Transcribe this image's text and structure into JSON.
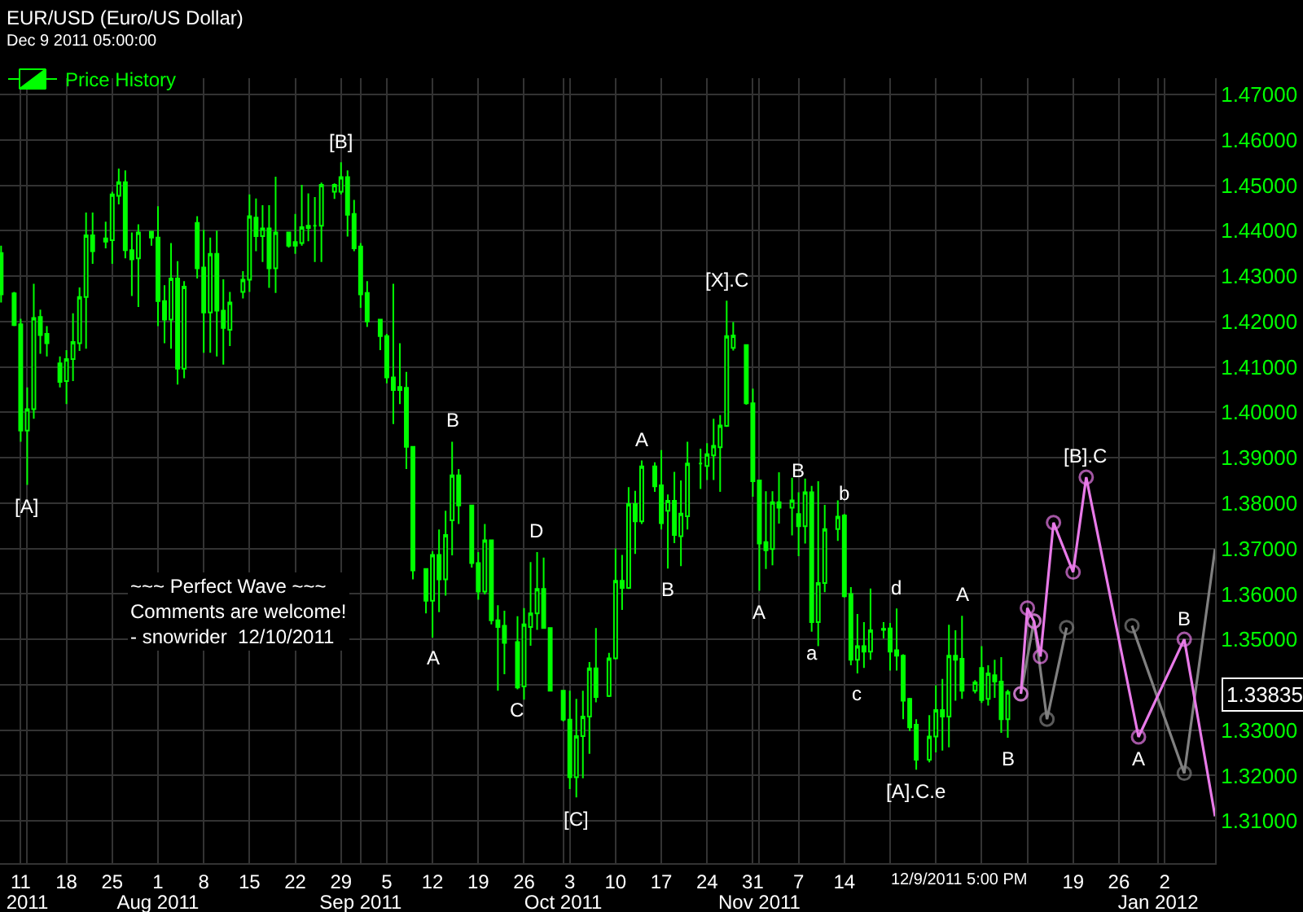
{
  "chart_data": {
    "type": "candlestick",
    "title": "EUR/USD (Euro/US Dollar)",
    "subtitle": "Dec 9 2011 05:00:00",
    "xlim": [
      "2011-07-07T20:00",
      "2012-01-09T17:00"
    ],
    "ylim": [
      1.3007,
      1.4736
    ],
    "xticks": [
      {
        "value": "2011-07-11",
        "label": "11"
      },
      {
        "value": "2011-07-18",
        "label": "18"
      },
      {
        "value": "2011-07-25",
        "label": "25"
      },
      {
        "value": "2011-08-01",
        "label": "1"
      },
      {
        "value": "2011-08-08",
        "label": "8"
      },
      {
        "value": "2011-08-15",
        "label": "15"
      },
      {
        "value": "2011-08-22",
        "label": "22"
      },
      {
        "value": "2011-08-29",
        "label": "29"
      },
      {
        "value": "2011-09-05",
        "label": "5"
      },
      {
        "value": "2011-09-12",
        "label": "12"
      },
      {
        "value": "2011-09-19",
        "label": "19"
      },
      {
        "value": "2011-09-26",
        "label": "26"
      },
      {
        "value": "2011-10-03",
        "label": "3"
      },
      {
        "value": "2011-10-10",
        "label": "10"
      },
      {
        "value": "2011-10-17",
        "label": "17"
      },
      {
        "value": "2011-10-24",
        "label": "24"
      },
      {
        "value": "2011-10-31",
        "label": "31"
      },
      {
        "value": "2011-11-07",
        "label": "7"
      },
      {
        "value": "2011-11-14",
        "label": "14"
      },
      {
        "value": "2011-11-21",
        "label": null
      },
      {
        "value": "2011-11-28",
        "label": null
      },
      {
        "value": "2011-12-05",
        "label": null
      },
      {
        "value": "2011-12-12",
        "label": null
      },
      {
        "value": "2011-12-19",
        "label": "19"
      },
      {
        "value": "2011-12-26",
        "label": "26"
      },
      {
        "value": "2012-01-02",
        "label": "2"
      }
    ],
    "x2lim": [
      "2011-07-07T20:00",
      "2012-01-09T17:00"
    ],
    "x2ticks": [
      {
        "value": "2011-07-12",
        "label": "2011"
      },
      {
        "value": "2011-08-01",
        "label": "Aug 2011"
      },
      {
        "value": "2011-09-01",
        "label": "Sep 2011"
      },
      {
        "value": "2011-10-02",
        "label": "Oct 2011"
      },
      {
        "value": "2011-11-01",
        "label": "Nov 2011"
      },
      {
        "value": "2012-01-01",
        "label": "Jan 2012"
      }
    ],
    "yticks": [
      {
        "value": 1.31,
        "label": "1.31000"
      },
      {
        "value": 1.32,
        "label": "1.32000"
      },
      {
        "value": 1.33,
        "label": "1.33000"
      },
      {
        "value": 1.34,
        "label": null
      },
      {
        "value": 1.35,
        "label": "1.35000"
      },
      {
        "value": 1.36,
        "label": "1.36000"
      },
      {
        "value": 1.37,
        "label": "1.37000"
      },
      {
        "value": 1.38,
        "label": "1.38000"
      },
      {
        "value": 1.39,
        "label": "1.39000"
      },
      {
        "value": 1.4,
        "label": "1.40000"
      },
      {
        "value": 1.41,
        "label": "1.41000"
      },
      {
        "value": 1.42,
        "label": "1.42000"
      },
      {
        "value": 1.43,
        "label": "1.43000"
      },
      {
        "value": 1.44,
        "label": "1.44000"
      },
      {
        "value": 1.45,
        "label": "1.45000"
      },
      {
        "value": 1.46,
        "label": "1.46000"
      },
      {
        "value": 1.47,
        "label": "1.47000"
      }
    ],
    "grid": true,
    "legend": "top left",
    "series": [
      {
        "name": "Price History",
        "color": "#00ff00",
        "x": [
          "2011-07-08",
          "2011-07-10",
          "2011-07-11",
          "2011-07-12",
          "2011-07-13",
          "2011-07-14",
          "2011-07-15",
          "2011-07-17",
          "2011-07-18",
          "2011-07-19",
          "2011-07-20",
          "2011-07-21",
          "2011-07-22",
          "2011-07-24",
          "2011-07-25",
          "2011-07-26",
          "2011-07-27",
          "2011-07-28",
          "2011-07-29",
          "2011-07-31",
          "2011-08-01",
          "2011-08-02",
          "2011-08-03",
          "2011-08-04",
          "2011-08-05",
          "2011-08-07",
          "2011-08-08",
          "2011-08-09",
          "2011-08-10",
          "2011-08-11",
          "2011-08-12",
          "2011-08-14",
          "2011-08-15",
          "2011-08-16",
          "2011-08-17",
          "2011-08-18",
          "2011-08-19",
          "2011-08-21",
          "2011-08-22",
          "2011-08-23",
          "2011-08-24",
          "2011-08-25",
          "2011-08-26",
          "2011-08-28",
          "2011-08-29",
          "2011-08-30",
          "2011-08-31",
          "2011-09-01",
          "2011-09-02",
          "2011-09-04",
          "2011-09-05",
          "2011-09-06",
          "2011-09-07",
          "2011-09-08",
          "2011-09-09",
          "2011-09-11",
          "2011-09-12",
          "2011-09-13",
          "2011-09-14",
          "2011-09-15",
          "2011-09-16",
          "2011-09-18",
          "2011-09-19",
          "2011-09-20",
          "2011-09-21",
          "2011-09-22",
          "2011-09-23",
          "2011-09-25",
          "2011-09-26",
          "2011-09-27",
          "2011-09-28",
          "2011-09-29",
          "2011-09-30",
          "2011-10-02",
          "2011-10-03",
          "2011-10-04",
          "2011-10-05",
          "2011-10-06",
          "2011-10-07",
          "2011-10-09",
          "2011-10-10",
          "2011-10-11",
          "2011-10-12",
          "2011-10-13",
          "2011-10-14",
          "2011-10-16",
          "2011-10-17",
          "2011-10-18",
          "2011-10-19",
          "2011-10-20",
          "2011-10-21",
          "2011-10-23",
          "2011-10-24",
          "2011-10-25",
          "2011-10-26",
          "2011-10-27",
          "2011-10-28",
          "2011-10-30",
          "2011-10-31",
          "2011-11-01",
          "2011-11-02",
          "2011-11-03",
          "2011-11-04",
          "2011-11-06",
          "2011-11-07",
          "2011-11-08",
          "2011-11-09",
          "2011-11-10",
          "2011-11-11",
          "2011-11-13",
          "2011-11-14",
          "2011-11-15",
          "2011-11-16",
          "2011-11-17",
          "2011-11-18",
          "2011-11-20",
          "2011-11-21",
          "2011-11-22",
          "2011-11-23",
          "2011-11-24",
          "2011-11-25",
          "2011-11-27",
          "2011-11-28",
          "2011-11-29",
          "2011-11-30",
          "2011-12-01",
          "2011-12-02",
          "2011-12-04",
          "2011-12-05",
          "2011-12-06",
          "2011-12-07",
          "2011-12-08",
          "2011-12-09"
        ],
        "ohlc": [
          [
            1.4351,
            1.4367,
            1.4242,
            1.426
          ],
          [
            1.4262,
            1.4265,
            1.419,
            1.4192
          ],
          [
            1.4194,
            1.4206,
            1.3935,
            1.396
          ],
          [
            1.396,
            1.4055,
            1.384,
            1.4007
          ],
          [
            1.4007,
            1.4283,
            1.3986,
            1.4208
          ],
          [
            1.421,
            1.4226,
            1.4129,
            1.417
          ],
          [
            1.4173,
            1.419,
            1.4123,
            1.4152
          ],
          [
            1.4108,
            1.4123,
            1.4055,
            1.4067
          ],
          [
            1.4069,
            1.4137,
            1.4018,
            1.4117
          ],
          [
            1.4117,
            1.4218,
            1.4069,
            1.4155
          ],
          [
            1.4152,
            1.4275,
            1.4135,
            1.4254
          ],
          [
            1.4254,
            1.444,
            1.414,
            1.439
          ],
          [
            1.439,
            1.444,
            1.4327,
            1.4355
          ],
          [
            1.4383,
            1.442,
            1.4361,
            1.4376
          ],
          [
            1.4379,
            1.4486,
            1.4327,
            1.448
          ],
          [
            1.4477,
            1.4537,
            1.4458,
            1.4507
          ],
          [
            1.4507,
            1.4533,
            1.4339,
            1.4357
          ],
          [
            1.4357,
            1.4396,
            1.4256,
            1.4337
          ],
          [
            1.4339,
            1.4414,
            1.4232,
            1.4396
          ],
          [
            1.4398,
            1.4399,
            1.4367,
            1.4385
          ],
          [
            1.4385,
            1.4454,
            1.419,
            1.4245
          ],
          [
            1.4245,
            1.428,
            1.4152,
            1.4204
          ],
          [
            1.4204,
            1.4373,
            1.414,
            1.4295
          ],
          [
            1.4295,
            1.4333,
            1.4061,
            1.4096
          ],
          [
            1.4096,
            1.4289,
            1.4075,
            1.4277
          ],
          [
            1.4417,
            1.4432,
            1.4295,
            1.4317
          ],
          [
            1.4319,
            1.4402,
            1.4131,
            1.422
          ],
          [
            1.422,
            1.4385,
            1.4131,
            1.4349
          ],
          [
            1.4349,
            1.44,
            1.4123,
            1.4224
          ],
          [
            1.4224,
            1.4293,
            1.4105,
            1.4186
          ],
          [
            1.4182,
            1.4265,
            1.4146,
            1.4242
          ],
          [
            1.4265,
            1.4311,
            1.4251,
            1.4292
          ],
          [
            1.4292,
            1.448,
            1.4265,
            1.4432
          ],
          [
            1.4429,
            1.4471,
            1.4355,
            1.4388
          ],
          [
            1.4388,
            1.4456,
            1.4331,
            1.4405
          ],
          [
            1.4405,
            1.4456,
            1.4274,
            1.4317
          ],
          [
            1.4317,
            1.4519,
            1.4263,
            1.4396
          ],
          [
            1.4396,
            1.4396,
            1.4363,
            1.4367
          ],
          [
            1.4375,
            1.4437,
            1.4349,
            1.4367
          ],
          [
            1.4373,
            1.4501,
            1.4367,
            1.4408
          ],
          [
            1.4406,
            1.4482,
            1.4377,
            1.4411
          ],
          [
            1.4411,
            1.4474,
            1.4331,
            1.4411
          ],
          [
            1.4411,
            1.4506,
            1.4331,
            1.4501
          ],
          [
            1.4486,
            1.4504,
            1.447,
            1.4501
          ],
          [
            1.4486,
            1.4551,
            1.448,
            1.4518
          ],
          [
            1.4518,
            1.4533,
            1.4387,
            1.4435
          ],
          [
            1.4437,
            1.4468,
            1.4355,
            1.4361
          ],
          [
            1.4365,
            1.4373,
            1.423,
            1.426
          ],
          [
            1.4263,
            1.4289,
            1.4188,
            1.42
          ],
          [
            1.4204,
            1.4204,
            1.4137,
            1.4168
          ],
          [
            1.4168,
            1.4173,
            1.4064,
            1.4077
          ],
          [
            1.4077,
            1.4283,
            1.3974,
            1.4049
          ],
          [
            1.4056,
            1.4152,
            1.4018,
            1.4049
          ],
          [
            1.4054,
            1.4089,
            1.3875,
            1.3924
          ],
          [
            1.3924,
            1.3924,
            1.3632,
            1.3652
          ],
          [
            1.3655,
            1.3655,
            1.3557,
            1.3585
          ],
          [
            1.3585,
            1.3694,
            1.3504,
            1.3686
          ],
          [
            1.3686,
            1.3742,
            1.356,
            1.3632
          ],
          [
            1.3632,
            1.3783,
            1.3596,
            1.373
          ],
          [
            1.3762,
            1.3935,
            1.3685,
            1.3861
          ],
          [
            1.3861,
            1.3875,
            1.3754,
            1.3795
          ],
          [
            1.3795,
            1.3795,
            1.3658,
            1.3668
          ],
          [
            1.3668,
            1.3692,
            1.3587,
            1.3605
          ],
          [
            1.3605,
            1.3754,
            1.3599,
            1.3718
          ],
          [
            1.3718,
            1.372,
            1.3533,
            1.3542
          ],
          [
            1.3542,
            1.3575,
            1.3387,
            1.3527
          ],
          [
            1.353,
            1.3563,
            1.3423,
            1.3492
          ],
          [
            1.3494,
            1.3551,
            1.339,
            1.3394
          ],
          [
            1.3396,
            1.3569,
            1.3367,
            1.3533
          ],
          [
            1.3527,
            1.367,
            1.3486,
            1.3557
          ],
          [
            1.3557,
            1.3692,
            1.3521,
            1.3611
          ],
          [
            1.3611,
            1.368,
            1.3525,
            1.3525
          ],
          [
            1.3525,
            1.3525,
            1.3385,
            1.3387
          ],
          [
            1.3387,
            1.3387,
            1.3319,
            1.3323
          ],
          [
            1.3323,
            1.3387,
            1.317,
            1.3196
          ],
          [
            1.3196,
            1.3369,
            1.3152,
            1.3287
          ],
          [
            1.3287,
            1.3387,
            1.3194,
            1.333
          ],
          [
            1.333,
            1.345,
            1.3248,
            1.3436
          ],
          [
            1.3436,
            1.3525,
            1.3361,
            1.3373
          ],
          [
            1.3375,
            1.347,
            1.3373,
            1.3458
          ],
          [
            1.3458,
            1.37,
            1.3456,
            1.3629
          ],
          [
            1.3629,
            1.3686,
            1.3565,
            1.3613
          ],
          [
            1.3613,
            1.3835,
            1.3611,
            1.3798
          ],
          [
            1.3798,
            1.3827,
            1.3688,
            1.376
          ],
          [
            1.376,
            1.3894,
            1.3754,
            1.3881
          ],
          [
            1.3881,
            1.389,
            1.3825,
            1.3837
          ],
          [
            1.3839,
            1.3917,
            1.3742,
            1.3756
          ],
          [
            1.3783,
            1.3819,
            1.3656,
            1.3805
          ],
          [
            1.3805,
            1.3869,
            1.3712,
            1.373
          ],
          [
            1.3727,
            1.385,
            1.3661,
            1.3777
          ],
          [
            1.3771,
            1.3935,
            1.3742,
            1.3887
          ],
          [
            1.3887,
            1.392,
            1.3831,
            1.3887
          ],
          [
            1.3882,
            1.3932,
            1.3851,
            1.3908
          ],
          [
            1.3905,
            1.3986,
            1.3851,
            1.3926
          ],
          [
            1.3923,
            1.3994,
            1.3825,
            1.3971
          ],
          [
            1.397,
            1.4246,
            1.3968,
            1.4168
          ],
          [
            1.4142,
            1.4199,
            1.4136,
            1.4169
          ],
          [
            1.4148,
            1.4148,
            1.4017,
            1.402
          ],
          [
            1.402,
            1.4052,
            1.3814,
            1.3848
          ],
          [
            1.385,
            1.385,
            1.3607,
            1.3711
          ],
          [
            1.3714,
            1.3826,
            1.3655,
            1.3696
          ],
          [
            1.3699,
            1.3826,
            1.3663,
            1.3802
          ],
          [
            1.3802,
            1.3868,
            1.3755,
            1.379
          ],
          [
            1.379,
            1.3856,
            1.3729,
            1.3806
          ],
          [
            1.3776,
            1.3824,
            1.3683,
            1.3749
          ],
          [
            1.3749,
            1.3854,
            1.3711,
            1.3824
          ],
          [
            1.3824,
            1.3838,
            1.3517,
            1.3538
          ],
          [
            1.3538,
            1.3848,
            1.3485,
            1.3624
          ],
          [
            1.3624,
            1.3796,
            1.3604,
            1.3743
          ],
          [
            1.3743,
            1.3806,
            1.3717,
            1.377
          ],
          [
            1.3773,
            1.3776,
            1.3592,
            1.3595
          ],
          [
            1.36,
            1.3615,
            1.3443,
            1.3455
          ],
          [
            1.3455,
            1.3556,
            1.3425,
            1.3485
          ],
          [
            1.3485,
            1.3538,
            1.3437,
            1.3473
          ],
          [
            1.3473,
            1.3612,
            1.3455,
            1.352
          ],
          [
            1.3521,
            1.3538,
            1.3502,
            1.3523
          ],
          [
            1.3524,
            1.3536,
            1.3431,
            1.3473
          ],
          [
            1.3476,
            1.3568,
            1.3431,
            1.3464
          ],
          [
            1.3464,
            1.3467,
            1.3324,
            1.3365
          ],
          [
            1.3369,
            1.3371,
            1.3298,
            1.3306
          ],
          [
            1.3312,
            1.3324,
            1.3213,
            1.3235
          ],
          [
            1.3235,
            1.3333,
            1.3229,
            1.3286
          ],
          [
            1.3286,
            1.3399,
            1.3251,
            1.3344
          ],
          [
            1.3344,
            1.3413,
            1.3255,
            1.333
          ],
          [
            1.333,
            1.3532,
            1.3262,
            1.3464
          ],
          [
            1.3464,
            1.352,
            1.3365,
            1.3455
          ],
          [
            1.3457,
            1.3552,
            1.3369,
            1.3387
          ],
          [
            1.3387,
            1.341,
            1.3381,
            1.3405
          ],
          [
            1.3437,
            1.3485,
            1.336,
            1.3366
          ],
          [
            1.3369,
            1.3443,
            1.3354,
            1.3425
          ],
          [
            1.3421,
            1.3455,
            1.3371,
            1.3407
          ],
          [
            1.3407,
            1.3461,
            1.3294,
            1.3324
          ],
          [
            1.3324,
            1.3389,
            1.3283,
            1.33835
          ]
        ]
      },
      {
        "type": "line",
        "color": "#808080",
        "marker": "circle",
        "line_style": "solid",
        "x": [
          "2011-12-11",
          "2011-12-13",
          "2011-12-15",
          "2011-12-18",
          "2011-12-22",
          "2011-12-28",
          "2012-01-05",
          "2012-01-09T17:00"
        ],
        "values": [
          1.338,
          1.354,
          1.3324,
          1.3526,
          null,
          1.353,
          1.3205,
          1.3699
        ]
      },
      {
        "type": "line",
        "color": "#e87ae8",
        "marker": "circle",
        "line_style": "solid",
        "x": [
          "2011-12-11",
          "2011-12-12",
          "2011-12-13",
          "2011-12-14",
          "2011-12-16",
          "2011-12-19",
          "2011-12-21",
          "2011-12-29",
          "2012-01-05",
          "2012-01-09T17:00"
        ],
        "values": [
          1.338,
          1.3569,
          1.354,
          1.3462,
          1.3757,
          1.3648,
          1.3857,
          1.3285,
          1.35,
          1.311
        ]
      }
    ],
    "annotations": [
      {
        "text": "[A]",
        "x": "2011-07-12",
        "y": 1.384
      },
      {
        "text": "[B]",
        "x": "2011-08-29",
        "y": 1.4551
      },
      {
        "text": "A",
        "x": "2011-09-12",
        "y": 1.3504
      },
      {
        "text": "B",
        "x": "2011-09-15",
        "y": 1.3935
      },
      {
        "text": "C",
        "x": "2011-09-25",
        "y": 1.339
      },
      {
        "text": "D",
        "x": "2011-09-28",
        "y": 1.3692
      },
      {
        "text": "[C]",
        "x": "2011-10-04",
        "y": 1.3152
      },
      {
        "text": "A",
        "x": "2011-10-14",
        "y": 1.3894
      },
      {
        "text": "B",
        "x": "2011-10-18",
        "y": 1.3656
      },
      {
        "text": "[X].C",
        "x": "2011-10-27",
        "y": 1.4246
      },
      {
        "text": "A",
        "x": "2011-11-01",
        "y": 1.3607
      },
      {
        "text": "B",
        "x": "2011-11-07",
        "y": 1.3824
      },
      {
        "text": "a",
        "x": "2011-11-09",
        "y": 1.3517
      },
      {
        "text": "b",
        "x": "2011-11-14",
        "y": 1.3776
      },
      {
        "text": "c",
        "x": "2011-11-16",
        "y": 1.3425
      },
      {
        "text": "d",
        "x": "2011-11-22",
        "y": 1.3568
      },
      {
        "text": "[A].C.e",
        "x": "2011-11-25",
        "y": 1.3213
      },
      {
        "text": "A",
        "x": "2011-12-02",
        "y": 1.3552
      },
      {
        "text": "B",
        "x": "2011-12-09",
        "y": 1.3283
      },
      {
        "text": "[B].C",
        "x": "2011-12-21",
        "y": 1.3857
      },
      {
        "text": "A",
        "x": "2011-12-29",
        "y": 1.3285
      },
      {
        "text": "B",
        "x": "2012-01-05",
        "y": 1.35
      },
      "~~~ Perfect Wave ~~~\nComments are welcome!\n- snowrider  12/10/2011",
      "12/9/2011 5:00 PM",
      "1.33835"
    ]
  }
}
